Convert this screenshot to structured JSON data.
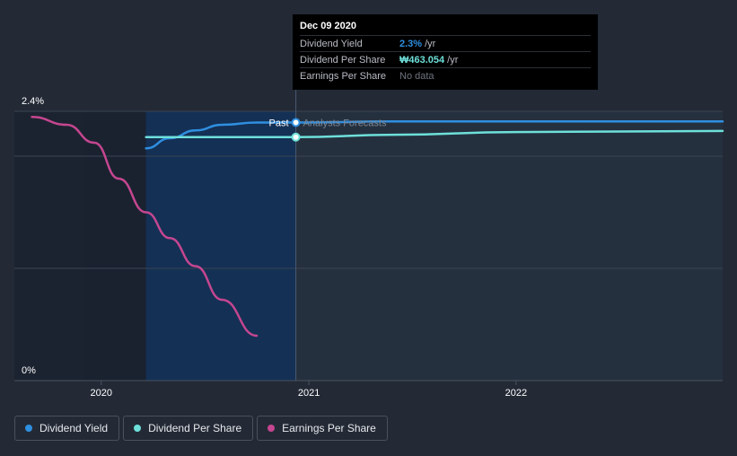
{
  "chart_data": {
    "type": "line",
    "y_axis": {
      "min_label": "0%",
      "max_label": "2.4%",
      "ylim": [
        0,
        2.4
      ]
    },
    "x_ticks": [
      "2020",
      "2021",
      "2022"
    ],
    "divider": {
      "past_label": "Past",
      "forecast_label": "Analysts Forecasts",
      "date": "Dec 09 2020"
    },
    "series": [
      {
        "name": "Dividend Yield",
        "color": "#2f8fe0",
        "unit": "%",
        "points": [
          [
            "2020-03-20",
            2.07
          ],
          [
            "2020-05-01",
            2.16
          ],
          [
            "2020-06-15",
            2.23
          ],
          [
            "2020-08-01",
            2.28
          ],
          [
            "2020-10-01",
            2.3
          ],
          [
            "2020-12-09",
            2.3
          ],
          [
            "2021-06-01",
            2.31
          ],
          [
            "2022-01-01",
            2.31
          ],
          [
            "2022-12-31",
            2.31
          ]
        ]
      },
      {
        "name": "Dividend Per Share",
        "color": "#6ee0da",
        "unit": "₩",
        "points": [
          [
            "2020-03-20",
            463.054
          ],
          [
            "2020-12-09",
            463.054
          ],
          [
            "2021-06-01",
            463.5
          ],
          [
            "2022-01-01",
            464.0
          ],
          [
            "2022-12-31",
            464.2
          ]
        ]
      },
      {
        "name": "Earnings Per Share",
        "color": "#c54690",
        "unit": "",
        "points": [
          [
            "2019-09-01",
            2.35
          ],
          [
            "2019-11-01",
            2.28
          ],
          [
            "2019-12-20",
            2.12
          ],
          [
            "2020-02-01",
            1.8
          ],
          [
            "2020-03-20",
            1.5
          ],
          [
            "2020-05-01",
            1.27
          ],
          [
            "2020-06-15",
            1.02
          ],
          [
            "2020-08-01",
            0.72
          ],
          [
            "2020-10-01",
            0.4
          ]
        ]
      }
    ]
  },
  "tooltip": {
    "date": "Dec 09 2020",
    "rows": [
      {
        "name": "Dividend Yield",
        "value": "2.3%",
        "unit": "/yr",
        "color": "#2f8fe0"
      },
      {
        "name": "Dividend Per Share",
        "value": "₩463.054",
        "unit": "/yr",
        "color": "#6ee0da"
      },
      {
        "name": "Earnings Per Share",
        "value": "No data",
        "unit": "",
        "color": "#6f7580"
      }
    ]
  },
  "legend": [
    {
      "label": "Dividend Yield",
      "color": "#2f8fe0"
    },
    {
      "label": "Dividend Per Share",
      "color": "#6ee0da"
    },
    {
      "label": "Earnings Per Share",
      "color": "#c54690"
    }
  ]
}
